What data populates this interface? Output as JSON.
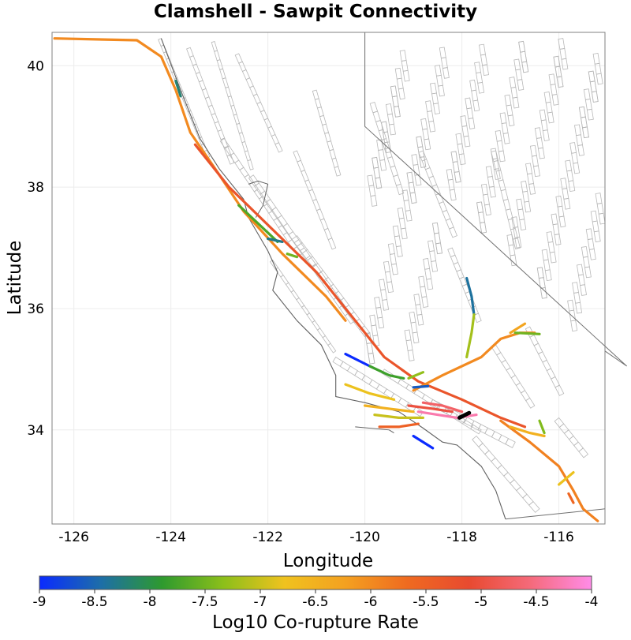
{
  "title": "Clamshell - Sawpit Connectivity",
  "xlabel": "Longitude",
  "ylabel": "Latitude",
  "x_ticks": [
    "-126",
    "-124",
    "-122",
    "-120",
    "-118",
    "-116"
  ],
  "y_ticks": [
    "40",
    "38",
    "36",
    "34"
  ],
  "xlim": [
    -126.45,
    -115.05
  ],
  "ylim": [
    32.45,
    40.55
  ],
  "colorbar": {
    "label": "Log10 Co-rupture Rate",
    "min": -9,
    "max": -4,
    "ticks": [
      "-9",
      "-8.5",
      "-8",
      "-7.5",
      "-7",
      "-6.5",
      "-6",
      "-5.5",
      "-5",
      "-4.5",
      "-4"
    ],
    "stops": [
      "#0a2bff",
      "#1d6ea8",
      "#2e9a2e",
      "#8cbf1a",
      "#f0c21e",
      "#f4a020",
      "#ef6a20",
      "#e84a30",
      "#f56a7a",
      "#ff8ce8"
    ]
  },
  "colors": {
    "state_border": "#707070",
    "coastline": "#606060",
    "fault_outline": "#b8b8b8",
    "frame": "#808080"
  },
  "ruptures": [
    {
      "v": -6.0,
      "pts": [
        [
          -126.4,
          40.45
        ],
        [
          -124.7,
          40.42
        ],
        [
          -124.2,
          40.15
        ],
        [
          -123.9,
          39.6
        ],
        [
          -123.6,
          38.9
        ],
        [
          -123.0,
          38.2
        ],
        [
          -122.5,
          37.6
        ],
        [
          -121.7,
          36.9
        ],
        [
          -120.8,
          36.2
        ],
        [
          -120.4,
          35.8
        ]
      ]
    },
    {
      "v": -8.2,
      "pts": [
        [
          -123.9,
          39.75
        ],
        [
          -123.8,
          39.5
        ]
      ]
    },
    {
      "v": -7.7,
      "pts": [
        [
          -122.6,
          37.7
        ],
        [
          -122.2,
          37.4
        ],
        [
          -121.8,
          37.1
        ]
      ]
    },
    {
      "v": -8.3,
      "pts": [
        [
          -122.0,
          37.15
        ],
        [
          -121.7,
          37.1
        ]
      ]
    },
    {
      "v": -7.5,
      "pts": [
        [
          -121.6,
          36.9
        ],
        [
          -121.4,
          36.85
        ]
      ]
    },
    {
      "v": -5.3,
      "pts": [
        [
          -123.5,
          38.7
        ],
        [
          -122.8,
          38.0
        ],
        [
          -121.9,
          37.3
        ],
        [
          -121.0,
          36.6
        ],
        [
          -120.2,
          35.8
        ],
        [
          -119.6,
          35.2
        ],
        [
          -118.9,
          34.8
        ],
        [
          -118.0,
          34.5
        ],
        [
          -117.2,
          34.2
        ],
        [
          -116.7,
          34.05
        ]
      ]
    },
    {
      "v": -8.4,
      "pts": [
        [
          -117.9,
          36.5
        ],
        [
          -117.8,
          36.2
        ],
        [
          -117.75,
          35.9
        ]
      ]
    },
    {
      "v": -7.2,
      "pts": [
        [
          -117.75,
          35.9
        ],
        [
          -117.8,
          35.6
        ],
        [
          -117.9,
          35.2
        ]
      ]
    },
    {
      "v": -6.0,
      "pts": [
        [
          -119.0,
          34.65
        ],
        [
          -118.4,
          34.9
        ],
        [
          -117.6,
          35.2
        ],
        [
          -117.2,
          35.5
        ],
        [
          -116.8,
          35.6
        ],
        [
          -116.5,
          35.6
        ]
      ]
    },
    {
      "v": -7.5,
      "pts": [
        [
          -116.9,
          35.6
        ],
        [
          -116.4,
          35.58
        ]
      ]
    },
    {
      "v": -6.3,
      "pts": [
        [
          -117.0,
          35.6
        ],
        [
          -116.7,
          35.75
        ]
      ]
    },
    {
      "v": -9.0,
      "pts": [
        [
          -120.4,
          35.25
        ],
        [
          -119.9,
          35.05
        ]
      ]
    },
    {
      "v": -7.8,
      "pts": [
        [
          -119.9,
          35.05
        ],
        [
          -119.5,
          34.9
        ],
        [
          -119.2,
          34.85
        ]
      ]
    },
    {
      "v": -7.3,
      "pts": [
        [
          -119.1,
          34.85
        ],
        [
          -118.8,
          34.95
        ]
      ]
    },
    {
      "v": -6.8,
      "pts": [
        [
          -120.4,
          34.75
        ],
        [
          -119.9,
          34.6
        ],
        [
          -119.4,
          34.5
        ]
      ]
    },
    {
      "v": -8.6,
      "pts": [
        [
          -119.0,
          34.7
        ],
        [
          -118.7,
          34.72
        ]
      ]
    },
    {
      "v": -6.5,
      "pts": [
        [
          -120.0,
          34.4
        ],
        [
          -119.5,
          34.35
        ],
        [
          -119.0,
          34.3
        ]
      ]
    },
    {
      "v": -7.0,
      "pts": [
        [
          -119.8,
          34.25
        ],
        [
          -119.3,
          34.2
        ],
        [
          -118.8,
          34.2
        ]
      ]
    },
    {
      "v": -5.5,
      "pts": [
        [
          -119.7,
          34.05
        ],
        [
          -119.3,
          34.05
        ],
        [
          -118.9,
          34.1
        ]
      ]
    },
    {
      "v": -5.0,
      "pts": [
        [
          -119.1,
          34.4
        ],
        [
          -118.6,
          34.35
        ],
        [
          -118.2,
          34.3
        ]
      ]
    },
    {
      "v": -4.3,
      "pts": [
        [
          -118.9,
          34.3
        ],
        [
          -118.5,
          34.25
        ],
        [
          -118.1,
          34.2
        ],
        [
          -117.7,
          34.25
        ]
      ]
    },
    {
      "v": -4.7,
      "pts": [
        [
          -118.8,
          34.45
        ],
        [
          -118.4,
          34.4
        ],
        [
          -118.0,
          34.3
        ]
      ]
    },
    {
      "v": -9.0,
      "pts": [
        [
          -119.0,
          33.9
        ],
        [
          -118.6,
          33.7
        ]
      ]
    },
    {
      "v": -5.9,
      "pts": [
        [
          -117.2,
          34.15
        ],
        [
          -116.6,
          33.8
        ],
        [
          -116.0,
          33.4
        ],
        [
          -115.7,
          33.0
        ],
        [
          -115.5,
          32.7
        ],
        [
          -115.2,
          32.5
        ]
      ]
    },
    {
      "v": -7.4,
      "pts": [
        [
          -116.4,
          34.15
        ],
        [
          -116.3,
          33.95
        ]
      ]
    },
    {
      "v": -6.5,
      "pts": [
        [
          -117.0,
          34.05
        ],
        [
          -116.6,
          33.95
        ],
        [
          -116.3,
          33.9
        ]
      ]
    },
    {
      "v": -6.8,
      "pts": [
        [
          -116.0,
          33.1
        ],
        [
          -115.7,
          33.3
        ]
      ]
    },
    {
      "v": -5.6,
      "pts": [
        [
          -115.8,
          32.95
        ],
        [
          -115.7,
          32.8
        ]
      ]
    }
  ],
  "target_label": "",
  "target_segment": [
    [
      -118.05,
      34.2
    ],
    [
      -117.85,
      34.28
    ]
  ]
}
